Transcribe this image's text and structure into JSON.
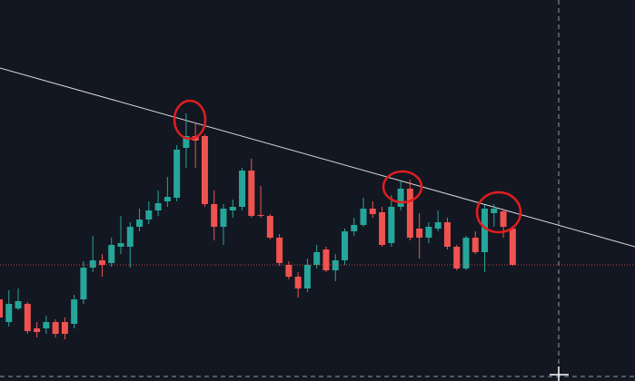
{
  "chart_data": {
    "type": "candlestick",
    "categories": [
      null,
      null,
      null,
      null,
      null,
      null,
      null,
      null,
      null,
      null,
      null,
      null,
      null,
      null,
      null,
      null,
      null,
      null,
      null,
      null,
      null,
      null,
      null,
      null,
      null,
      null,
      null,
      null,
      null,
      null,
      null,
      null,
      null,
      null,
      null,
      null,
      null,
      null,
      null,
      null,
      null,
      null,
      null,
      null,
      null,
      null,
      null,
      null,
      null,
      null,
      null,
      null,
      null,
      null,
      null,
      null
    ],
    "open": [
      90,
      65,
      80,
      85,
      58,
      58,
      65,
      65,
      63,
      90,
      125,
      133,
      130,
      148,
      148,
      170,
      178,
      188,
      198,
      202,
      257,
      270,
      270,
      195,
      170,
      188,
      192,
      232,
      183,
      182,
      158,
      128,
      115,
      102,
      128,
      145,
      122,
      133,
      165,
      172,
      190,
      186,
      152,
      192,
      212,
      168,
      158,
      168,
      175,
      148,
      124,
      158,
      142,
      185,
      187,
      168
    ],
    "high": [
      95,
      100,
      102,
      87,
      65,
      72,
      68,
      70,
      95,
      132,
      160,
      140,
      158,
      182,
      175,
      190,
      198,
      210,
      225,
      260,
      295,
      285,
      272,
      210,
      195,
      200,
      235,
      245,
      215,
      184,
      162,
      132,
      120,
      135,
      150,
      148,
      140,
      168,
      180,
      202,
      198,
      192,
      205,
      220,
      222,
      185,
      175,
      188,
      180,
      150,
      160,
      165,
      194,
      195,
      190,
      170
    ],
    "low": [
      68,
      60,
      78,
      52,
      48,
      52,
      48,
      46,
      58,
      85,
      120,
      115,
      126,
      140,
      125,
      165,
      173,
      182,
      192,
      198,
      235,
      235,
      192,
      155,
      150,
      180,
      188,
      180,
      180,
      156,
      127,
      112,
      92,
      98,
      124,
      120,
      110,
      128,
      160,
      170,
      180,
      148,
      148,
      188,
      155,
      135,
      152,
      165,
      145,
      122,
      122,
      140,
      120,
      170,
      158,
      127
    ],
    "close": [
      70,
      85,
      88,
      55,
      54,
      65,
      52,
      52,
      90,
      125,
      133,
      128,
      150,
      152,
      170,
      178,
      188,
      196,
      203,
      255,
      270,
      265,
      195,
      170,
      190,
      192,
      232,
      182,
      182,
      158,
      130,
      115,
      102,
      128,
      142,
      122,
      133,
      165,
      172,
      190,
      184,
      150,
      192,
      212,
      158,
      158,
      170,
      175,
      148,
      124,
      158,
      142,
      190,
      190,
      170,
      128
    ],
    "up_color": "#26a69a",
    "down_color": "#ef5350",
    "ylim": [
      0,
      420
    ]
  }
}
